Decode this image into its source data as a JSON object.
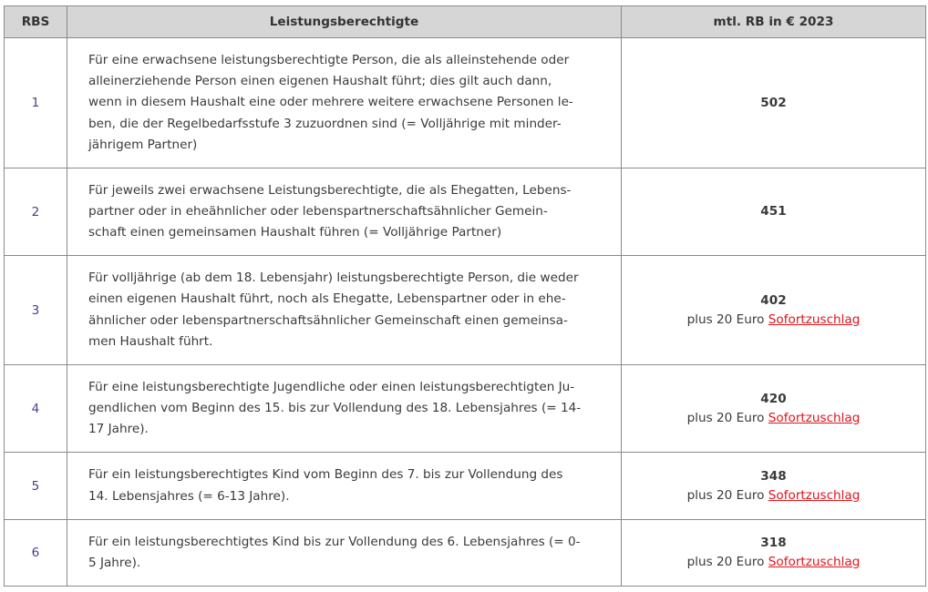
{
  "header": {
    "col1": "RBS",
    "col2": "Leistungsberechtigte",
    "col3": "mtl. RB in € 2023"
  },
  "rows": [
    {
      "rbs": "1",
      "lines": [
        "Für eine erwachsene leistungsberechtigte Person, die als alleinstehende oder",
        "alleinerziehende Person einen eigenen Haushalt führt; dies gilt auch dann,",
        "wenn in diesem Haushalt eine oder mehrere weitere erwachsene Personen le-",
        "ben, die der Regelbedarfsstufe 3 zuzuordnen sind (= Volljährige mit minder-",
        "jährigem Partner)"
      ],
      "amount": "502"
    },
    {
      "rbs": "2",
      "lines": [
        "Für jeweils zwei erwachsene Leistungsberechtigte, die als Ehegatten, Lebens-",
        "partner oder in eheähnlicher oder lebenspartnerschaftsähnlicher Gemein-",
        "schaft einen gemeinsamen Haushalt führen (= Volljährige Partner)"
      ],
      "amount": "451"
    },
    {
      "rbs": "3",
      "lines": [
        "Für volljährige (ab dem 18. Lebensjahr) leistungsberechtigte Person, die weder",
        "einen eigenen Haushalt führt, noch als Ehegatte, Lebenspartner oder in ehe-",
        "ähnlicher oder lebenspartnerschaftsähnlicher Gemeinschaft einen gemeinsa-",
        "men Haushalt führt."
      ],
      "amount": "402",
      "extra": "plus 20 Euro ",
      "link": "Sofortzuschlag"
    },
    {
      "rbs": "4",
      "lines": [
        "Für eine leistungsberechtigte Jugendliche oder einen leistungsberechtigten Ju-",
        "gendlichen vom Beginn des 15. bis zur Vollendung des 18. Lebensjahres (= 14-",
        "17 Jahre)."
      ],
      "amount": "420",
      "extra": "plus 20 Euro ",
      "link": "Sofortzuschlag"
    },
    {
      "rbs": "5",
      "lines": [
        "Für ein leistungsberechtigtes Kind vom Beginn des 7. bis zur Vollendung des",
        "14. Lebensjahres (= 6-13 Jahre)."
      ],
      "amount": "348",
      "extra": "plus 20 Euro ",
      "link": "Sofortzuschlag"
    },
    {
      "rbs": "6",
      "lines": [
        "Für ein leistungsberechtigtes Kind bis zur Vollendung des 6. Lebensjahres (= 0-",
        "5 Jahre)."
      ],
      "amount": "318",
      "extra": "plus 20 Euro ",
      "link": "Sofortzuschlag"
    }
  ],
  "colors": {
    "link": "#e0141b",
    "header_bg": "#d6d6d6",
    "rbs_number": "#4a3f8a"
  }
}
